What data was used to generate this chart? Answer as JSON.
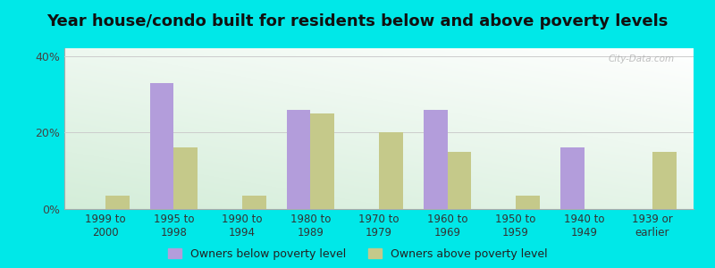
{
  "title": "Year house/condo built for residents below and above poverty levels",
  "categories": [
    "1999 to\n2000",
    "1995 to\n1998",
    "1990 to\n1994",
    "1980 to\n1989",
    "1970 to\n1979",
    "1960 to\n1969",
    "1950 to\n1959",
    "1940 to\n1949",
    "1939 or\nearlier"
  ],
  "below_poverty": [
    0.0,
    33.0,
    0.0,
    26.0,
    0.0,
    26.0,
    0.0,
    16.0,
    0.0
  ],
  "above_poverty": [
    3.5,
    16.0,
    3.5,
    25.0,
    20.0,
    15.0,
    3.5,
    0.0,
    15.0
  ],
  "below_color": "#b39ddb",
  "above_color": "#c5c98a",
  "ylim": [
    0,
    42
  ],
  "ytick_labels": [
    "0%",
    "20%",
    "40%"
  ],
  "ytick_values": [
    0,
    20,
    40
  ],
  "background_outer": "#00e8e8",
  "background_inner_top_left": "#d4eedc",
  "background_inner_top_right": "#ffffff",
  "bar_width": 0.35,
  "legend_below_label": "Owners below poverty level",
  "legend_above_label": "Owners above poverty level",
  "watermark": "City-Data.com",
  "title_fontsize": 13,
  "tick_fontsize": 8.5
}
